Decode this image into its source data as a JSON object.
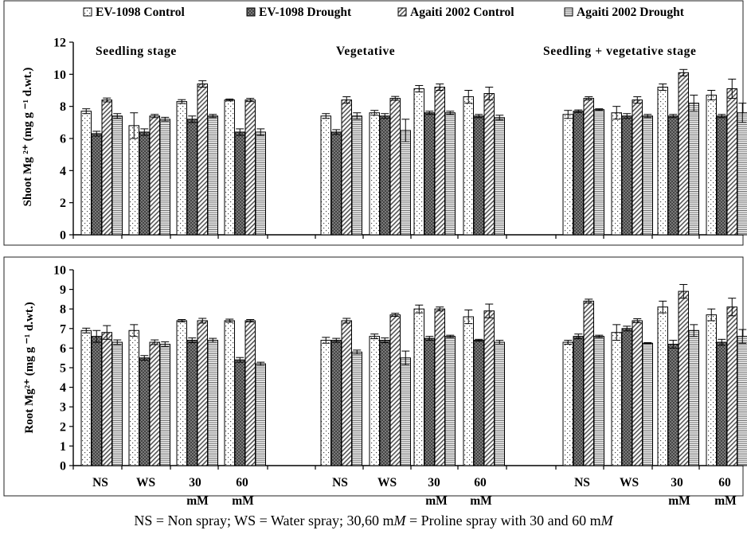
{
  "legend": [
    {
      "name": "EV-1098 Control",
      "pattern": "dots"
    },
    {
      "name": "EV-1098 Drought",
      "pattern": "cross"
    },
    {
      "name": "Agaiti 2002 Control",
      "pattern": "diag"
    },
    {
      "name": "Agaiti 2002 Drought",
      "pattern": "hlines"
    }
  ],
  "stages": [
    "Seedling stage",
    "Vegetative",
    "Seedling + vegetative stage"
  ],
  "treatments": [
    {
      "line1": "NS",
      "line2": ""
    },
    {
      "line1": "WS",
      "line2": ""
    },
    {
      "line1": "30",
      "line2": "mM"
    },
    {
      "line1": "60",
      "line2": "mM"
    }
  ],
  "caption": {
    "parts": [
      {
        "text": "NS = Non spray; WS = Water spray; 30,60 m",
        "italic": false
      },
      {
        "text": "M",
        "italic": true
      },
      {
        "text": " = Proline spray with 30 and 60 m",
        "italic": false
      },
      {
        "text": "M",
        "italic": true
      }
    ]
  },
  "chart_data": [
    {
      "type": "bar",
      "ylabel": "Shoot Mg ²⁺ (mg g ⁻¹ d.wt.)",
      "ylim": [
        0,
        12
      ],
      "yticks": [
        0,
        2,
        4,
        6,
        8,
        10,
        12
      ],
      "series_names": [
        "EV-1098 Control",
        "EV-1098 Drought",
        "Agaiti 2002 Control",
        "Agaiti 2002 Drought"
      ],
      "groups": [
        {
          "stage": "Seedling stage",
          "treatment": "NS",
          "values": [
            7.7,
            6.3,
            8.4,
            7.4
          ],
          "errors": [
            0.15,
            0.15,
            0.12,
            0.15
          ]
        },
        {
          "stage": "Seedling stage",
          "treatment": "WS",
          "values": [
            6.8,
            6.4,
            7.4,
            7.2
          ],
          "errors": [
            0.8,
            0.2,
            0.1,
            0.12
          ]
        },
        {
          "stage": "Seedling stage",
          "treatment": "30 mM",
          "values": [
            8.3,
            7.2,
            9.4,
            7.4
          ],
          "errors": [
            0.12,
            0.2,
            0.2,
            0.1
          ]
        },
        {
          "stage": "Seedling stage",
          "treatment": "60 mM",
          "values": [
            8.4,
            6.4,
            8.4,
            6.4
          ],
          "errors": [
            0.06,
            0.2,
            0.1,
            0.2
          ]
        },
        {
          "stage": "Vegetative",
          "treatment": "NS",
          "values": [
            7.4,
            6.4,
            8.4,
            7.4
          ],
          "errors": [
            0.15,
            0.15,
            0.2,
            0.2
          ]
        },
        {
          "stage": "Vegetative",
          "treatment": "WS",
          "values": [
            7.6,
            7.4,
            8.5,
            6.5
          ],
          "errors": [
            0.15,
            0.15,
            0.12,
            0.7
          ]
        },
        {
          "stage": "Vegetative",
          "treatment": "30 mM",
          "values": [
            9.1,
            7.6,
            9.2,
            7.6
          ],
          "errors": [
            0.2,
            0.1,
            0.2,
            0.1
          ]
        },
        {
          "stage": "Vegetative",
          "treatment": "60 mM",
          "values": [
            8.6,
            7.4,
            8.8,
            7.3
          ],
          "errors": [
            0.4,
            0.1,
            0.4,
            0.15
          ]
        },
        {
          "stage": "Seedling + vegetative stage",
          "treatment": "NS",
          "values": [
            7.5,
            7.7,
            8.5,
            7.8
          ],
          "errors": [
            0.25,
            0.08,
            0.1,
            0.05
          ]
        },
        {
          "stage": "Seedling + vegetative stage",
          "treatment": "WS",
          "values": [
            7.6,
            7.4,
            8.4,
            7.4
          ],
          "errors": [
            0.4,
            0.15,
            0.2,
            0.1
          ]
        },
        {
          "stage": "Seedling + vegetative stage",
          "treatment": "30 mM",
          "values": [
            9.2,
            7.4,
            10.1,
            8.2
          ],
          "errors": [
            0.2,
            0.1,
            0.2,
            0.5
          ]
        },
        {
          "stage": "Seedling + vegetative stage",
          "treatment": "60 mM",
          "values": [
            8.7,
            7.4,
            9.1,
            7.6
          ],
          "errors": [
            0.3,
            0.1,
            0.6,
            0.6
          ]
        }
      ]
    },
    {
      "type": "bar",
      "ylabel": "Root Mg²⁺ (mg g ⁻¹ d.wt.)",
      "ylim": [
        0,
        10
      ],
      "yticks": [
        0,
        1,
        2,
        3,
        4,
        5,
        6,
        7,
        8,
        9,
        10
      ],
      "series_names": [
        "EV-1098 Control",
        "EV-1098 Drought",
        "Agaiti 2002 Control",
        "Agaiti 2002 Drought"
      ],
      "groups": [
        {
          "stage": "Seedling stage",
          "treatment": "NS",
          "values": [
            6.9,
            6.6,
            6.8,
            6.3
          ],
          "errors": [
            0.12,
            0.3,
            0.35,
            0.12
          ]
        },
        {
          "stage": "Seedling stage",
          "treatment": "WS",
          "values": [
            6.9,
            5.5,
            6.3,
            6.2
          ],
          "errors": [
            0.3,
            0.12,
            0.12,
            0.12
          ]
        },
        {
          "stage": "Seedling stage",
          "treatment": "30 mM",
          "values": [
            7.4,
            6.4,
            7.4,
            6.4
          ],
          "errors": [
            0.06,
            0.12,
            0.12,
            0.1
          ]
        },
        {
          "stage": "Seedling stage",
          "treatment": "60 mM",
          "values": [
            7.4,
            5.4,
            7.4,
            5.2
          ],
          "errors": [
            0.08,
            0.12,
            0.06,
            0.08
          ]
        },
        {
          "stage": "Vegetative",
          "treatment": "NS",
          "values": [
            6.4,
            6.4,
            7.4,
            5.8
          ],
          "errors": [
            0.15,
            0.1,
            0.12,
            0.1
          ]
        },
        {
          "stage": "Vegetative",
          "treatment": "WS",
          "values": [
            6.6,
            6.4,
            7.7,
            5.5
          ],
          "errors": [
            0.12,
            0.12,
            0.08,
            0.35
          ]
        },
        {
          "stage": "Vegetative",
          "treatment": "30 mM",
          "values": [
            8.0,
            6.5,
            8.0,
            6.6
          ],
          "errors": [
            0.2,
            0.1,
            0.1,
            0.06
          ]
        },
        {
          "stage": "Vegetative",
          "treatment": "60 mM",
          "values": [
            7.6,
            6.4,
            7.9,
            6.3
          ],
          "errors": [
            0.35,
            0.05,
            0.35,
            0.1
          ]
        },
        {
          "stage": "Seedling + vegetative stage",
          "treatment": "NS",
          "values": [
            6.3,
            6.6,
            8.4,
            6.6
          ],
          "errors": [
            0.1,
            0.12,
            0.1,
            0.06
          ]
        },
        {
          "stage": "Seedling + vegetative stage",
          "treatment": "WS",
          "values": [
            6.8,
            7.0,
            7.4,
            6.25
          ],
          "errors": [
            0.4,
            0.12,
            0.1,
            0.03
          ]
        },
        {
          "stage": "Seedling + vegetative stage",
          "treatment": "30 mM",
          "values": [
            8.1,
            6.2,
            8.9,
            6.9
          ],
          "errors": [
            0.3,
            0.2,
            0.35,
            0.3
          ]
        },
        {
          "stage": "Seedling + vegetative stage",
          "treatment": "60 mM",
          "values": [
            7.7,
            6.3,
            8.1,
            6.6
          ],
          "errors": [
            0.3,
            0.15,
            0.45,
            0.35
          ]
        }
      ]
    }
  ]
}
